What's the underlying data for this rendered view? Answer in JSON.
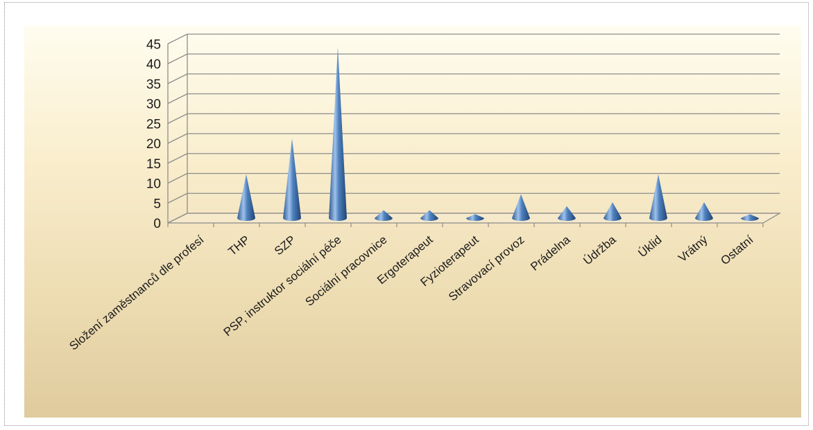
{
  "chart_data": {
    "type": "bar",
    "style": "3d-cone",
    "categories": [
      "Složení zaměstnanců dle profesí",
      "THP",
      "SZP",
      "PSP, instruktor sociální péče",
      "Sociální pracovnice",
      "Ergoterapeut",
      "Fyzioterapeut",
      "Stravovací provoz",
      "Prádelna",
      "Údržba",
      "Úklid",
      "Vrátný",
      "Ostatní"
    ],
    "values": [
      0,
      11,
      20,
      43,
      2,
      2,
      1,
      6,
      3,
      4,
      11,
      4,
      1
    ],
    "yticks": [
      0,
      5,
      10,
      15,
      20,
      25,
      30,
      35,
      40,
      45
    ],
    "ylim": [
      0,
      45
    ],
    "grid": true,
    "legend": "none",
    "colors": {
      "cone": "#4f81bd",
      "grid": "#8c8c8c"
    }
  }
}
